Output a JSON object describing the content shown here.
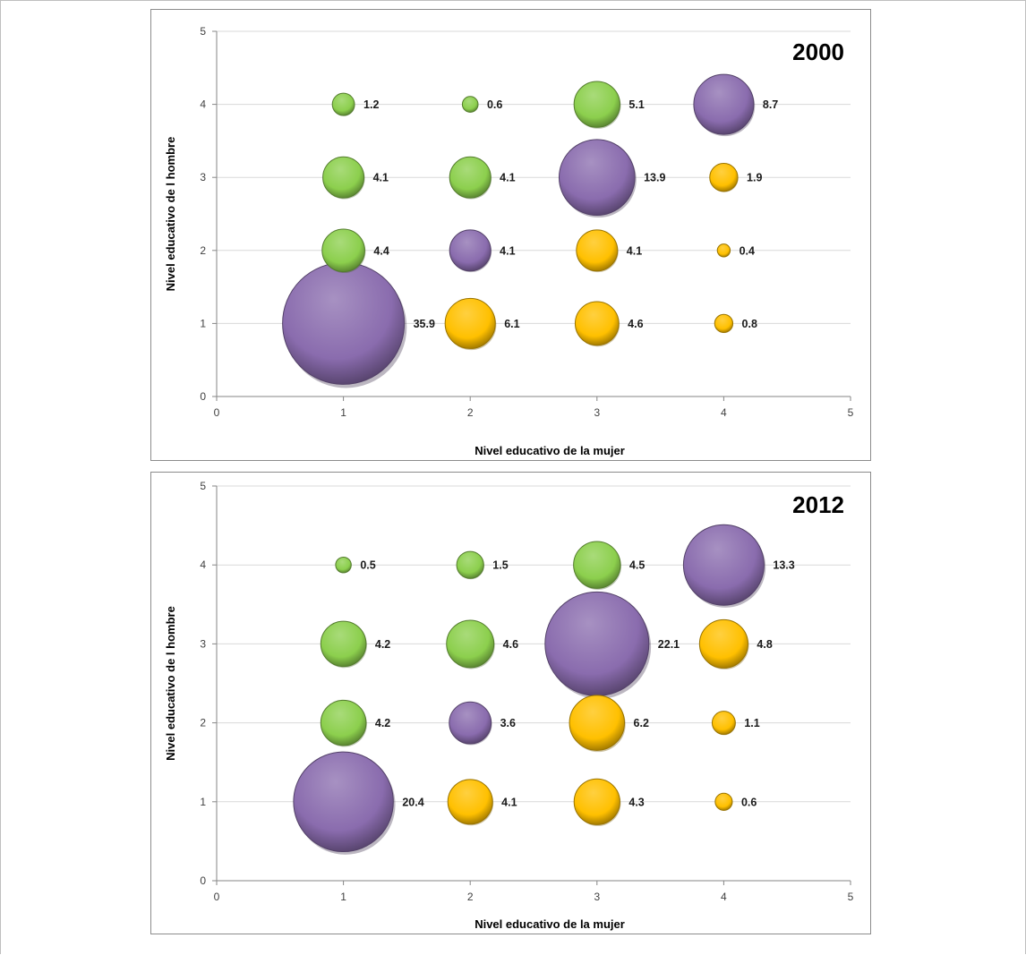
{
  "colors": {
    "green": "#8ccf4d",
    "purple": "#8a6cae",
    "yellow": "#ffc000"
  },
  "chart_data": [
    {
      "type": "bubble",
      "title": "2000",
      "xlabel": "Nivel educativo de la mujer",
      "ylabel": "Nivel educativo de l hombre",
      "xlim": [
        0,
        5
      ],
      "ylim": [
        0,
        5
      ],
      "xticks": [
        0,
        1,
        2,
        3,
        4,
        5
      ],
      "yticks": [
        0,
        1,
        2,
        3,
        4,
        5
      ],
      "grid": true,
      "points": [
        {
          "x": 1,
          "y": 4,
          "size": 1.2,
          "label": "1.2",
          "color": "green"
        },
        {
          "x": 2,
          "y": 4,
          "size": 0.6,
          "label": "0.6",
          "color": "green"
        },
        {
          "x": 3,
          "y": 4,
          "size": 5.1,
          "label": "5.1",
          "color": "green"
        },
        {
          "x": 4,
          "y": 4,
          "size": 8.7,
          "label": "8.7",
          "color": "purple"
        },
        {
          "x": 1,
          "y": 3,
          "size": 4.1,
          "label": "4.1",
          "color": "green"
        },
        {
          "x": 2,
          "y": 3,
          "size": 4.1,
          "label": "4.1",
          "color": "green"
        },
        {
          "x": 3,
          "y": 3,
          "size": 13.9,
          "label": "13.9",
          "color": "purple"
        },
        {
          "x": 4,
          "y": 3,
          "size": 1.9,
          "label": "1.9",
          "color": "yellow"
        },
        {
          "x": 1,
          "y": 2,
          "size": 4.4,
          "label": "4.4",
          "color": "green"
        },
        {
          "x": 2,
          "y": 2,
          "size": 4.1,
          "label": "4.1",
          "color": "purple"
        },
        {
          "x": 3,
          "y": 2,
          "size": 4.1,
          "label": "4.1",
          "color": "yellow"
        },
        {
          "x": 4,
          "y": 2,
          "size": 0.4,
          "label": "0.4",
          "color": "yellow"
        },
        {
          "x": 1,
          "y": 1,
          "size": 35.9,
          "label": "35.9",
          "color": "purple"
        },
        {
          "x": 2,
          "y": 1,
          "size": 6.1,
          "label": "6.1",
          "color": "yellow"
        },
        {
          "x": 3,
          "y": 1,
          "size": 4.6,
          "label": "4.6",
          "color": "yellow"
        },
        {
          "x": 4,
          "y": 1,
          "size": 0.8,
          "label": "0.8",
          "color": "yellow"
        }
      ]
    },
    {
      "type": "bubble",
      "title": "2012",
      "xlabel": "Nivel educativo de la mujer",
      "ylabel": "Nivel educativo de l hombre",
      "xlim": [
        0,
        5
      ],
      "ylim": [
        0,
        5
      ],
      "xticks": [
        0,
        1,
        2,
        3,
        4,
        5
      ],
      "yticks": [
        0,
        1,
        2,
        3,
        4,
        5
      ],
      "grid": true,
      "points": [
        {
          "x": 1,
          "y": 4,
          "size": 0.5,
          "label": "0.5",
          "color": "green"
        },
        {
          "x": 2,
          "y": 4,
          "size": 1.5,
          "label": "1.5",
          "color": "green"
        },
        {
          "x": 3,
          "y": 4,
          "size": 4.5,
          "label": "4.5",
          "color": "green"
        },
        {
          "x": 4,
          "y": 4,
          "size": 13.3,
          "label": "13.3",
          "color": "purple"
        },
        {
          "x": 1,
          "y": 3,
          "size": 4.2,
          "label": "4.2",
          "color": "green"
        },
        {
          "x": 2,
          "y": 3,
          "size": 4.6,
          "label": "4.6",
          "color": "green"
        },
        {
          "x": 3,
          "y": 3,
          "size": 22.1,
          "label": "22.1",
          "color": "purple"
        },
        {
          "x": 4,
          "y": 3,
          "size": 4.8,
          "label": "4.8",
          "color": "yellow"
        },
        {
          "x": 1,
          "y": 2,
          "size": 4.2,
          "label": "4.2",
          "color": "green"
        },
        {
          "x": 2,
          "y": 2,
          "size": 3.6,
          "label": "3.6",
          "color": "purple"
        },
        {
          "x": 3,
          "y": 2,
          "size": 6.2,
          "label": "6.2",
          "color": "yellow"
        },
        {
          "x": 4,
          "y": 2,
          "size": 1.1,
          "label": "1.1",
          "color": "yellow"
        },
        {
          "x": 1,
          "y": 1,
          "size": 20.4,
          "label": "20.4",
          "color": "purple"
        },
        {
          "x": 2,
          "y": 1,
          "size": 4.1,
          "label": "4.1",
          "color": "yellow"
        },
        {
          "x": 3,
          "y": 1,
          "size": 4.3,
          "label": "4.3",
          "color": "yellow"
        },
        {
          "x": 4,
          "y": 1,
          "size": 0.6,
          "label": "0.6",
          "color": "yellow"
        }
      ]
    }
  ]
}
